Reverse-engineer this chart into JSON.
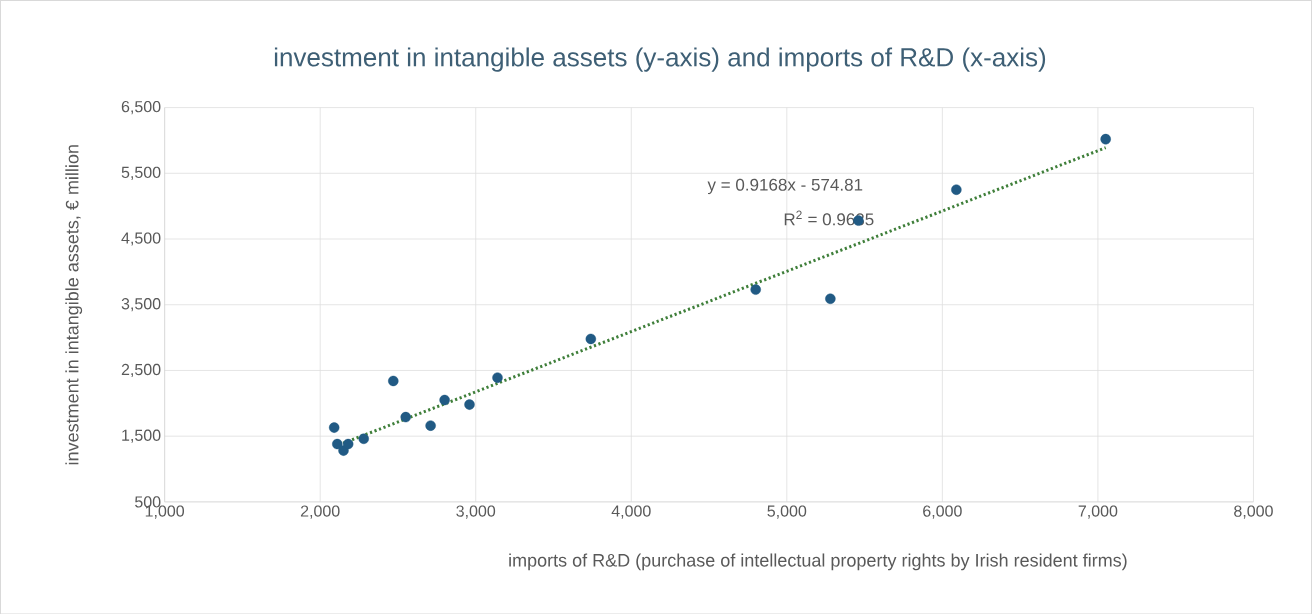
{
  "chart_data": {
    "type": "scatter",
    "title": "investment in intangible assets (y-axis) and imports of R&D (x-axis)",
    "xlabel": "imports of R&D (purchase of intellectual property rights by Irish resident firms)",
    "ylabel": "investment in intangible assets, € million",
    "series": [
      {
        "color": "#215a84",
        "marker": "circle",
        "x": [
          2090,
          2110,
          2150,
          2180,
          2280,
          2470,
          2550,
          2710,
          2800,
          2960,
          3140,
          3740,
          4800,
          5280,
          5460,
          6090,
          7050
        ],
        "values": [
          1630,
          1380,
          1280,
          1380,
          1460,
          2340,
          1790,
          1660,
          2050,
          1980,
          2390,
          2980,
          3730,
          3590,
          4780,
          5250,
          6020
        ]
      },
      {
        "type": "line",
        "color": "#3f7f3a",
        "line_style": "dotted",
        "marker": "none",
        "x": [
          2090,
          7050
        ],
        "values": [
          1340,
          5890
        ]
      }
    ],
    "annotations": [
      "y = 0.9168x - 574.81",
      "R$^{2}$ = 0.9635"
    ],
    "xlim": [
      1000,
      8000
    ],
    "ylim": [
      500,
      6500
    ],
    "xticks": [
      {
        "value": 1000,
        "label": "1,000"
      },
      {
        "value": 2000,
        "label": "2,000"
      },
      {
        "value": 3000,
        "label": "3,000"
      },
      {
        "value": 4000,
        "label": "4,000"
      },
      {
        "value": 5000,
        "label": "5,000"
      },
      {
        "value": 6000,
        "label": "6,000"
      },
      {
        "value": 7000,
        "label": "7,000"
      },
      {
        "value": 8000,
        "label": "8,000"
      }
    ],
    "yticks": [
      {
        "value": 500,
        "label": "500"
      },
      {
        "value": 1500,
        "label": "1,500"
      },
      {
        "value": 2500,
        "label": "2,500"
      },
      {
        "value": 3500,
        "label": "3,500"
      },
      {
        "value": 4500,
        "label": "4,500"
      },
      {
        "value": 5500,
        "label": "5,500"
      },
      {
        "value": 6500,
        "label": "6,500"
      }
    ],
    "grid": true
  }
}
